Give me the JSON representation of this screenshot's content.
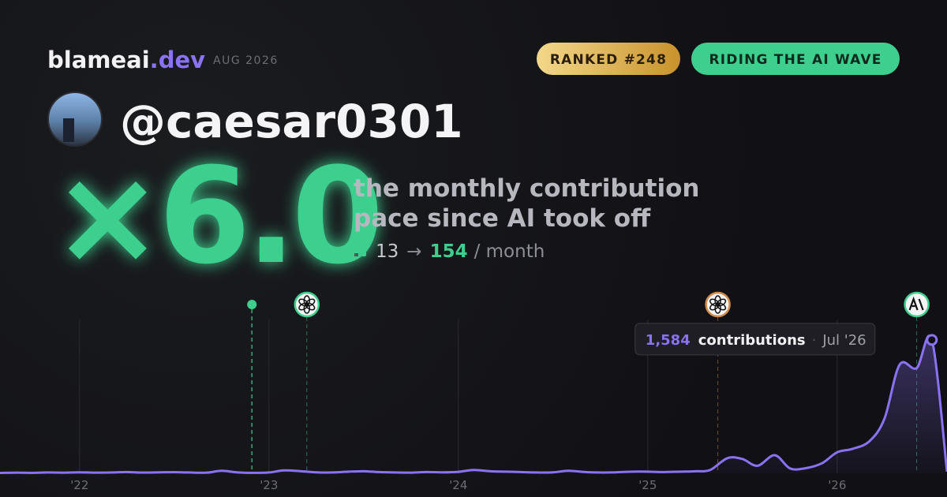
{
  "header": {
    "brand": "blameai",
    "brand_tld": ".dev",
    "date": "AUG 2026",
    "badges": [
      "RANKED #248",
      "RIDING THE AI WAVE"
    ]
  },
  "profile": {
    "handle": "@caesar0301"
  },
  "summary": {
    "multiplier": "×6.0",
    "description": [
      "the monthly contribution",
      "pace since AI took off"
    ],
    "pace_before": 13,
    "arrow": "→",
    "pace_after": 154,
    "unit": "/ month"
  },
  "chart_data": {
    "type": "area",
    "color": "#8a72f2",
    "x": [
      2021.58,
      2021.67,
      2021.75,
      2021.83,
      2021.92,
      2022.0,
      2022.08,
      2022.17,
      2022.25,
      2022.33,
      2022.42,
      2022.5,
      2022.58,
      2022.67,
      2022.75,
      2022.83,
      2022.92,
      2023.0,
      2023.08,
      2023.17,
      2023.25,
      2023.33,
      2023.42,
      2023.5,
      2023.58,
      2023.67,
      2023.75,
      2023.83,
      2023.92,
      2024.0,
      2024.08,
      2024.17,
      2024.25,
      2024.33,
      2024.42,
      2024.5,
      2024.58,
      2024.67,
      2024.75,
      2024.83,
      2024.92,
      2025.0,
      2025.08,
      2025.17,
      2025.25,
      2025.33,
      2025.42,
      2025.5,
      2025.58,
      2025.67,
      2025.75,
      2025.83,
      2025.92,
      2026.0,
      2026.08,
      2026.17,
      2026.25,
      2026.33,
      2026.42,
      2026.5,
      2026.58
    ],
    "values": [
      5,
      8,
      6,
      10,
      8,
      12,
      8,
      10,
      15,
      9,
      12,
      14,
      10,
      8,
      30,
      12,
      6,
      10,
      35,
      25,
      12,
      10,
      20,
      25,
      15,
      10,
      8,
      15,
      12,
      18,
      40,
      25,
      20,
      15,
      10,
      12,
      30,
      15,
      10,
      12,
      20,
      20,
      15,
      20,
      25,
      40,
      180,
      170,
      90,
      215,
      60,
      60,
      120,
      250,
      290,
      380,
      650,
      1290,
      1250,
      1584,
      20
    ],
    "value_labels": [
      null,
      null,
      null,
      null,
      null,
      null,
      null,
      null,
      null,
      null,
      null,
      null,
      null,
      null,
      null,
      null,
      null,
      null,
      null,
      null,
      null,
      null,
      null,
      null,
      null,
      null,
      null,
      null,
      null,
      null,
      null,
      null,
      null,
      null,
      null,
      null,
      null,
      null,
      null,
      null,
      null,
      null,
      null,
      null,
      null,
      null,
      null,
      null,
      null,
      null,
      null,
      null,
      null,
      null,
      null,
      null,
      null,
      null,
      null,
      "1,584",
      null
    ],
    "tooltip_text": "contributions",
    "tooltip_date": "Jul '26",
    "xlim": [
      2021.58,
      2026.58
    ],
    "ylim": [
      0,
      2060
    ],
    "xticks": [
      {
        "value": 2022,
        "label": "'22"
      },
      {
        "value": 2023,
        "label": "'23"
      },
      {
        "value": 2024,
        "label": "'24"
      },
      {
        "value": 2025,
        "label": "'25"
      },
      {
        "value": 2026,
        "label": "'26"
      }
    ],
    "grid": true,
    "event_x": [
      2022.91,
      2023.2,
      2025.37,
      2026.42
    ]
  }
}
